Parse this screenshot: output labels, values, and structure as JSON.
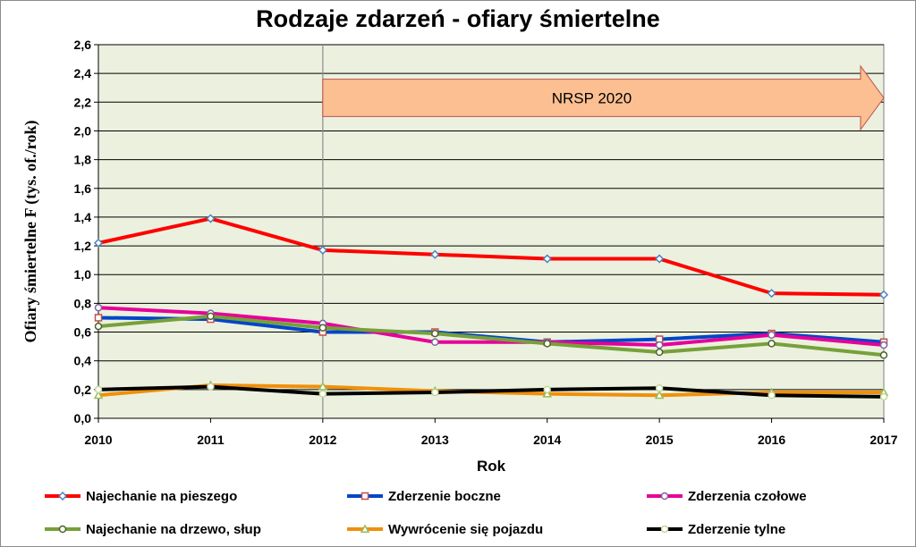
{
  "chart_data": {
    "type": "line",
    "title": "Rodzaje zdarzeń - ofiary śmiertelne",
    "xlabel": "Rok",
    "ylabel": "Ofiary śmiertelne F (tys. of./rok)",
    "x": [
      "2010",
      "2011",
      "2012",
      "2013",
      "2014",
      "2015",
      "2016",
      "2017"
    ],
    "yticks": [
      "0,0",
      "0,2",
      "0,4",
      "0,6",
      "0,8",
      "1,0",
      "1,2",
      "1,4",
      "1,6",
      "1,8",
      "2,0",
      "2,2",
      "2,4",
      "2,6"
    ],
    "ylim": [
      0,
      2.6
    ],
    "annotation": {
      "label": "NRSP 2020",
      "from_x": "2012",
      "to_x": "2017",
      "y_from": 2.1,
      "y_to": 2.36
    },
    "reference_line_x": "2012",
    "series": [
      {
        "name": "Najechanie na pieszego",
        "color": "#ff0000",
        "marker": "diamond",
        "markerColor": "#4f81bd",
        "values": [
          1.22,
          1.39,
          1.17,
          1.14,
          1.11,
          1.11,
          0.87,
          0.86
        ]
      },
      {
        "name": "Zderzenie boczne",
        "color": "#0046c8",
        "marker": "square",
        "markerColor": "#c0504d",
        "values": [
          0.7,
          0.69,
          0.6,
          0.6,
          0.53,
          0.55,
          0.59,
          0.53
        ]
      },
      {
        "name": "Zderzenia czołowe",
        "color": "#e6009a",
        "marker": "circle",
        "markerColor": "#8064a2",
        "values": [
          0.77,
          0.73,
          0.66,
          0.53,
          0.53,
          0.51,
          0.58,
          0.51
        ]
      },
      {
        "name": "Najechanie na drzewo, słup",
        "color": "#77a03a",
        "marker": "circle",
        "markerColor": "#4f6228",
        "values": [
          0.64,
          0.71,
          0.63,
          0.59,
          0.52,
          0.46,
          0.52,
          0.44
        ]
      },
      {
        "name": "Wywrócenie się pojazdu",
        "color": "#f0900a",
        "marker": "triangle",
        "markerColor": "#9bbb59",
        "values": [
          0.16,
          0.23,
          0.22,
          0.19,
          0.17,
          0.16,
          0.18,
          0.18
        ]
      },
      {
        "name": "Zderzenie tylne",
        "color": "#000000",
        "marker": "circle",
        "markerColor": "#c3d69b",
        "values": [
          0.2,
          0.22,
          0.17,
          0.18,
          0.2,
          0.21,
          0.16,
          0.15
        ]
      }
    ]
  }
}
